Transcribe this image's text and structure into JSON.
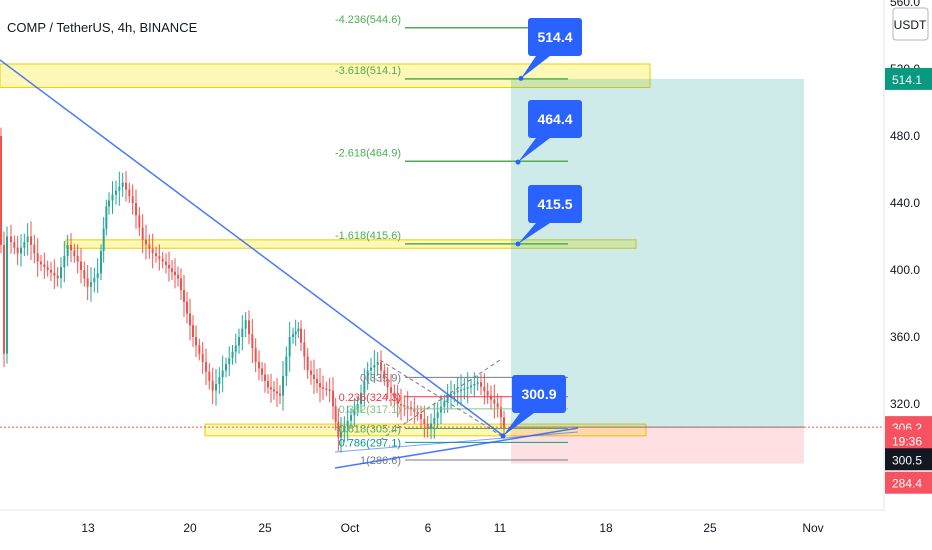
{
  "header": {
    "title": "COMP / TetherUS, 4h, BINANCE"
  },
  "price_axis": {
    "unit": "USDT",
    "ticks": [
      "560.0",
      "520.0",
      "480.0",
      "440.0",
      "400.0",
      "360.0",
      "320.0"
    ],
    "tags": [
      {
        "label": "514.1",
        "value": 514.1,
        "color": "#089981",
        "text_color": "#ffffff"
      },
      {
        "label": "306.2",
        "value": 306.2,
        "color": "#f7525f",
        "text_color": "#ffffff"
      },
      {
        "label": "19:36",
        "value": 298.2,
        "color": "#f7525f",
        "text_color": "#ffffff"
      },
      {
        "label": "300.5",
        "value": 287.0,
        "color": "#131722",
        "text_color": "#ffffff"
      },
      {
        "label": "284.4",
        "value": 273.0,
        "color": "#f7525f",
        "text_color": "#ffffff"
      }
    ]
  },
  "time_axis": {
    "ticks": [
      "13",
      "20",
      "25",
      "Oct",
      "6",
      "11",
      "18",
      "25",
      "Nov"
    ]
  },
  "chart_data": {
    "type": "line",
    "title": "COMP / TetherUS, 4h, BINANCE",
    "xlabel": "",
    "ylabel": "",
    "y_unit": "USDT",
    "ylim": [
      270,
      565
    ],
    "current_price": 306.2,
    "close_series_approx": [
      [
        0,
        480
      ],
      [
        6,
        350
      ],
      [
        10,
        420
      ],
      [
        20,
        410
      ],
      [
        30,
        420
      ],
      [
        40,
        405
      ],
      [
        50,
        400
      ],
      [
        60,
        395
      ],
      [
        70,
        415
      ],
      [
        80,
        405
      ],
      [
        90,
        390
      ],
      [
        100,
        398
      ],
      [
        108,
        438
      ],
      [
        115,
        445
      ],
      [
        125,
        452
      ],
      [
        135,
        440
      ],
      [
        145,
        418
      ],
      [
        155,
        410
      ],
      [
        165,
        405
      ],
      [
        180,
        395
      ],
      [
        195,
        360
      ],
      [
        205,
        345
      ],
      [
        215,
        328
      ],
      [
        225,
        340
      ],
      [
        238,
        355
      ],
      [
        248,
        370
      ],
      [
        258,
        345
      ],
      [
        270,
        330
      ],
      [
        282,
        325
      ],
      [
        292,
        360
      ],
      [
        300,
        365
      ],
      [
        310,
        340
      ],
      [
        322,
        330
      ],
      [
        332,
        328
      ],
      [
        340,
        300
      ],
      [
        350,
        310
      ],
      [
        360,
        320
      ],
      [
        370,
        340
      ],
      [
        380,
        345
      ],
      [
        390,
        330
      ],
      [
        400,
        320
      ],
      [
        410,
        318
      ],
      [
        420,
        314
      ],
      [
        430,
        305
      ],
      [
        440,
        315
      ],
      [
        450,
        325
      ],
      [
        460,
        328
      ],
      [
        470,
        330
      ],
      [
        480,
        333
      ],
      [
        490,
        325
      ],
      [
        500,
        318
      ],
      [
        506,
        306
      ]
    ],
    "fib_extension_levels": [
      {
        "label": "-4.236(544.6)",
        "value": 544.6
      },
      {
        "label": "-3.618(514.1)",
        "value": 514.1
      },
      {
        "label": "-2.618(464.9)",
        "value": 464.9
      },
      {
        "label": "-1.618(415.6)",
        "value": 415.6
      }
    ],
    "fib_retracement_levels": [
      {
        "label": "0(335.9)",
        "value": 335.9
      },
      {
        "label": "0.236(324.3)",
        "value": 324.3
      },
      {
        "label": "0.382(317.1)",
        "value": 317.1
      },
      {
        "label": "0.618(305.4)",
        "value": 305.4
      },
      {
        "label": "0.786(297.1)",
        "value": 297.1
      },
      {
        "label": "1(286.6)",
        "value": 286.6
      }
    ],
    "target_callouts": [
      {
        "label": "514.4",
        "value": 514.4
      },
      {
        "label": "464.4",
        "value": 464.4
      },
      {
        "label": "415.5",
        "value": 415.5
      },
      {
        "label": "300.9",
        "value": 300.9
      }
    ],
    "long_position": {
      "entry": 306.2,
      "target": 514.1,
      "stop": 284.4
    },
    "highlight_zones": [
      {
        "value_top": 523,
        "value_bottom": 509
      },
      {
        "value_top": 418,
        "value_bottom": 413
      },
      {
        "value_top": 308,
        "value_bottom": 301
      }
    ]
  }
}
